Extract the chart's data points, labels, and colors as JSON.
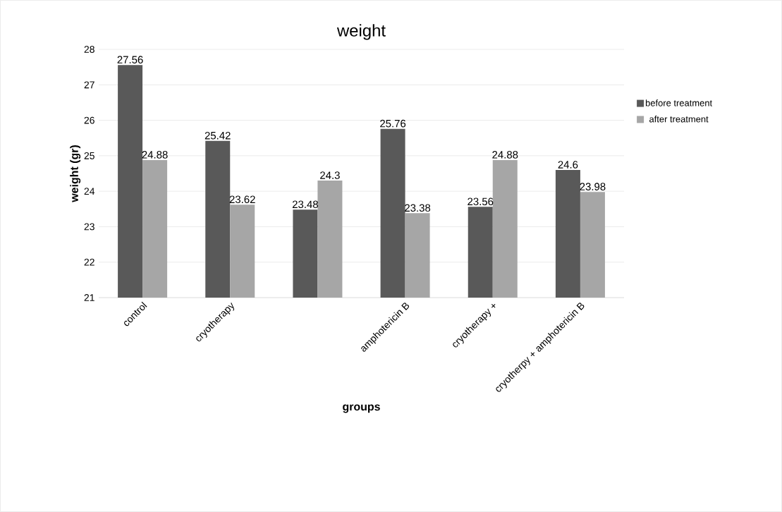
{
  "chart_data": {
    "type": "bar",
    "title": "weight",
    "xlabel": "groups",
    "ylabel": "weight (gr)",
    "categories": [
      "control",
      "cryotherapy",
      null,
      "amphotericin B",
      "cryotherapy +",
      "cryotherpy + amphotericin B"
    ],
    "series": [
      {
        "name": "before treatment",
        "color": "#595959",
        "values": [
          27.56,
          25.42,
          23.48,
          25.76,
          23.56,
          24.6
        ]
      },
      {
        "name": "after treatment",
        "color": "#a6a6a6",
        "values": [
          24.88,
          23.62,
          24.3,
          23.38,
          24.88,
          23.98
        ]
      }
    ],
    "ylim": [
      21,
      28
    ],
    "yticks": [
      21,
      22,
      23,
      24,
      25,
      26,
      27,
      28
    ],
    "grid": "y",
    "legend": "right",
    "data_labels": true
  }
}
